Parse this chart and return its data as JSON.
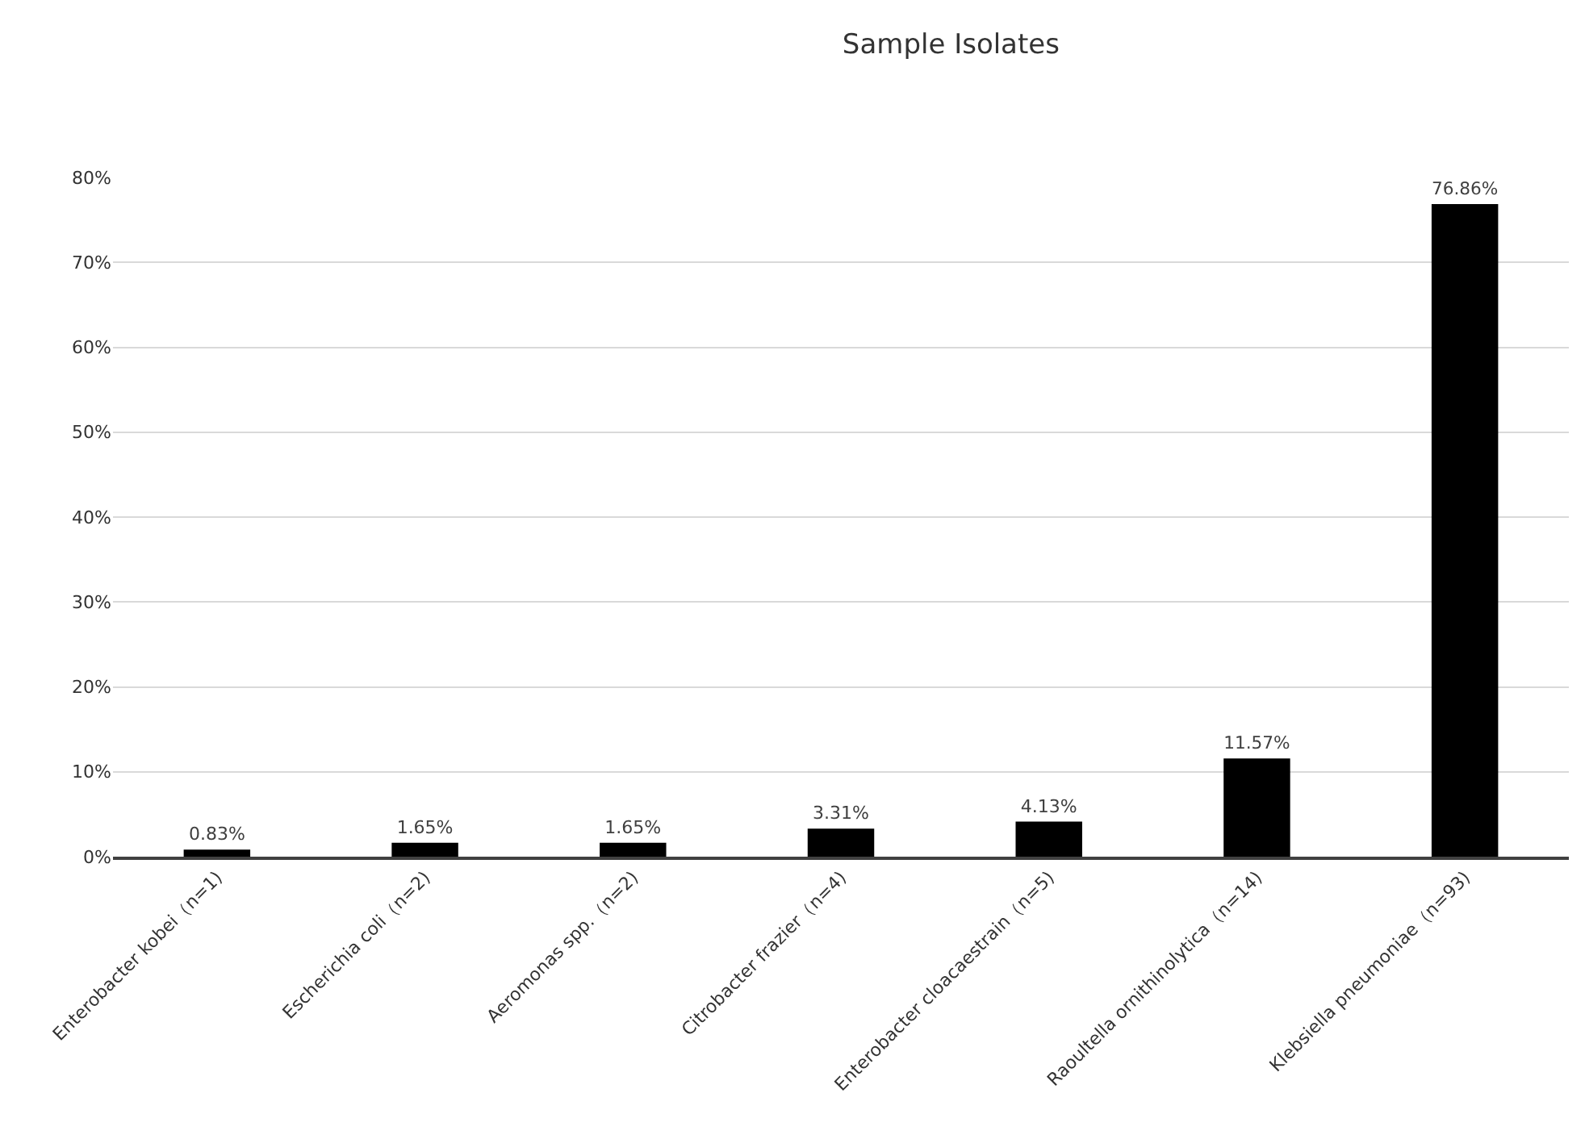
{
  "chart_data": {
    "type": "bar",
    "title": "Sample Isolates",
    "categories": [
      "Enterobacter kobei（n=1)",
      "Escherichia coli（n=2)",
      "Aeromonas spp.（n=2)",
      "Citrobacter frazier（n=4)",
      "Enterobacter cloacaestrain（n=5)",
      "Raoultella ornithinolytica（n=14)",
      "Klebsiella pneumoniae（n=93)"
    ],
    "values": [
      0.83,
      1.65,
      1.65,
      3.31,
      4.13,
      11.57,
      76.86
    ],
    "value_labels": [
      "0.83%",
      "1.65%",
      "1.65%",
      "3.31%",
      "4.13%",
      "11.57%",
      "76.86%"
    ],
    "color": "#000000",
    "ylim": [
      0,
      80
    ],
    "yticks": [
      {
        "value": 0,
        "label": "0%"
      },
      {
        "value": 10,
        "label": "10%"
      },
      {
        "value": 20,
        "label": "20%"
      },
      {
        "value": 30,
        "label": "30%"
      },
      {
        "value": 40,
        "label": "40%"
      },
      {
        "value": 50,
        "label": "50%"
      },
      {
        "value": 60,
        "label": "60%"
      },
      {
        "value": 70,
        "label": "70%"
      },
      {
        "value": 80,
        "label": "80%"
      }
    ],
    "grid": "y"
  }
}
